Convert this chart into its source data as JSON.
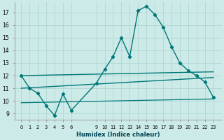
{
  "xlabel": "Humidex (Indice chaleur)",
  "bg_color": "#cceae7",
  "grid_color": "#aad4d0",
  "line_color": "#007878",
  "x_ticks": [
    0,
    1,
    2,
    3,
    4,
    5,
    6,
    9,
    10,
    11,
    12,
    13,
    14,
    15,
    16,
    17,
    18,
    19,
    20,
    21,
    22,
    23
  ],
  "ylim": [
    8.5,
    17.8
  ],
  "xlim": [
    -0.8,
    24.0
  ],
  "yticks": [
    9,
    10,
    11,
    12,
    13,
    14,
    15,
    16,
    17
  ],
  "main_series": {
    "x": [
      0,
      1,
      2,
      3,
      4,
      5,
      6,
      9,
      10,
      11,
      12,
      13,
      14,
      15,
      16,
      17,
      18,
      19,
      20,
      21,
      22,
      23
    ],
    "y": [
      12.0,
      11.0,
      10.6,
      9.6,
      8.85,
      10.55,
      9.25,
      11.4,
      12.5,
      13.5,
      15.0,
      13.5,
      17.15,
      17.5,
      16.85,
      15.85,
      14.3,
      13.0,
      12.4,
      12.0,
      11.5,
      10.3
    ]
  },
  "flat_lines": [
    {
      "x": [
        0,
        23
      ],
      "y": [
        12.0,
        12.3
      ],
      "lw": 1.0
    },
    {
      "x": [
        0,
        23
      ],
      "y": [
        11.0,
        11.85
      ],
      "lw": 1.0
    },
    {
      "x": [
        0,
        23
      ],
      "y": [
        9.85,
        10.15
      ],
      "lw": 0.9
    }
  ]
}
